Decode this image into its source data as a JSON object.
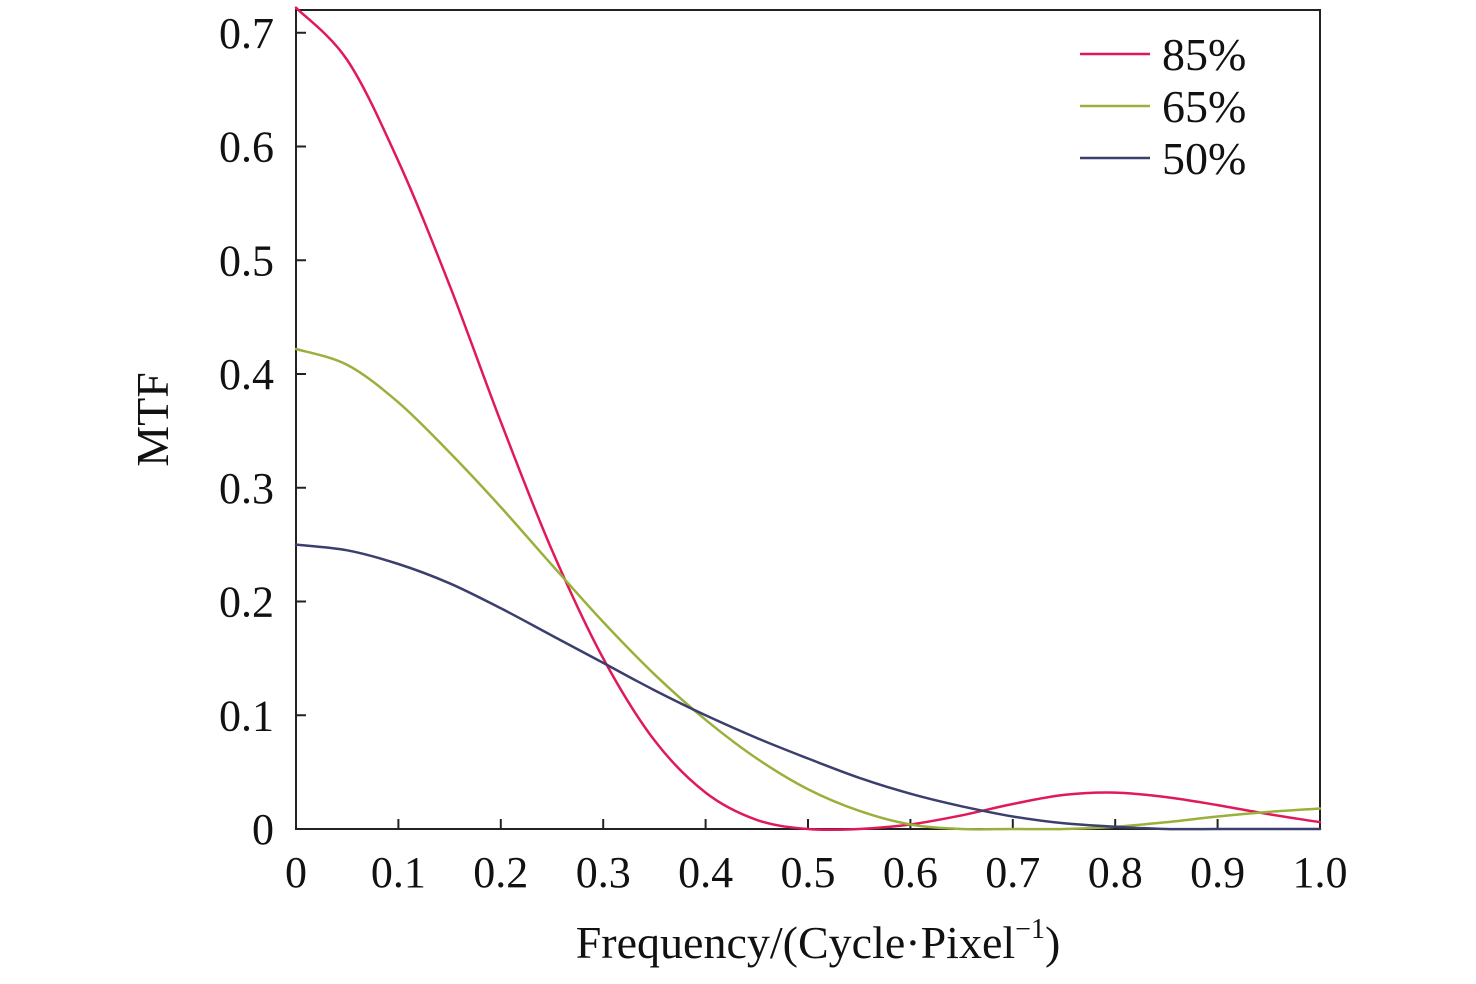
{
  "chart_data": {
    "type": "line",
    "title": "",
    "xlabel_main": "Frequency/(Cycle·Pixel",
    "xlabel_sup": "−1",
    "xlabel_close": ")",
    "ylabel": "MTF",
    "xlim": [
      0,
      1.0
    ],
    "ylim": [
      0,
      0.72
    ],
    "xticks": [
      0,
      0.1,
      0.2,
      0.3,
      0.4,
      0.5,
      0.6,
      0.7,
      0.8,
      0.9,
      1.0
    ],
    "xtick_labels": [
      "0",
      "0.1",
      "0.2",
      "0.3",
      "0.4",
      "0.5",
      "0.6",
      "0.7",
      "0.8",
      "0.9",
      "1.0"
    ],
    "yticks": [
      0,
      0.1,
      0.2,
      0.3,
      0.4,
      0.5,
      0.6,
      0.7
    ],
    "ytick_labels": [
      "0",
      "0.1",
      "0.2",
      "0.3",
      "0.4",
      "0.5",
      "0.6",
      "0.7"
    ],
    "grid": false,
    "legend_position": "top-right",
    "x": [
      0,
      0.05,
      0.1,
      0.15,
      0.2,
      0.25,
      0.3,
      0.35,
      0.4,
      0.45,
      0.5,
      0.55,
      0.6,
      0.65,
      0.7,
      0.75,
      0.8,
      0.85,
      0.9,
      0.95,
      1.0
    ],
    "series": [
      {
        "name": "85%",
        "color": "#e0195a",
        "values": [
          0.722,
          0.676,
          0.587,
          0.478,
          0.358,
          0.245,
          0.15,
          0.078,
          0.032,
          0.008,
          0.0,
          0.0,
          0.004,
          0.012,
          0.022,
          0.03,
          0.032,
          0.028,
          0.021,
          0.013,
          0.006
        ]
      },
      {
        "name": "65%",
        "color": "#9ab03c",
        "values": [
          0.422,
          0.408,
          0.375,
          0.331,
          0.283,
          0.232,
          0.182,
          0.136,
          0.096,
          0.062,
          0.035,
          0.016,
          0.004,
          0.0,
          0.0,
          0.0,
          0.002,
          0.006,
          0.011,
          0.015,
          0.018
        ]
      },
      {
        "name": "50%",
        "color": "#3a3f6e",
        "values": [
          0.25,
          0.245,
          0.233,
          0.216,
          0.194,
          0.17,
          0.146,
          0.122,
          0.1,
          0.08,
          0.062,
          0.045,
          0.031,
          0.02,
          0.011,
          0.005,
          0.002,
          0.0,
          0.0,
          0.0,
          0.0
        ]
      }
    ]
  }
}
